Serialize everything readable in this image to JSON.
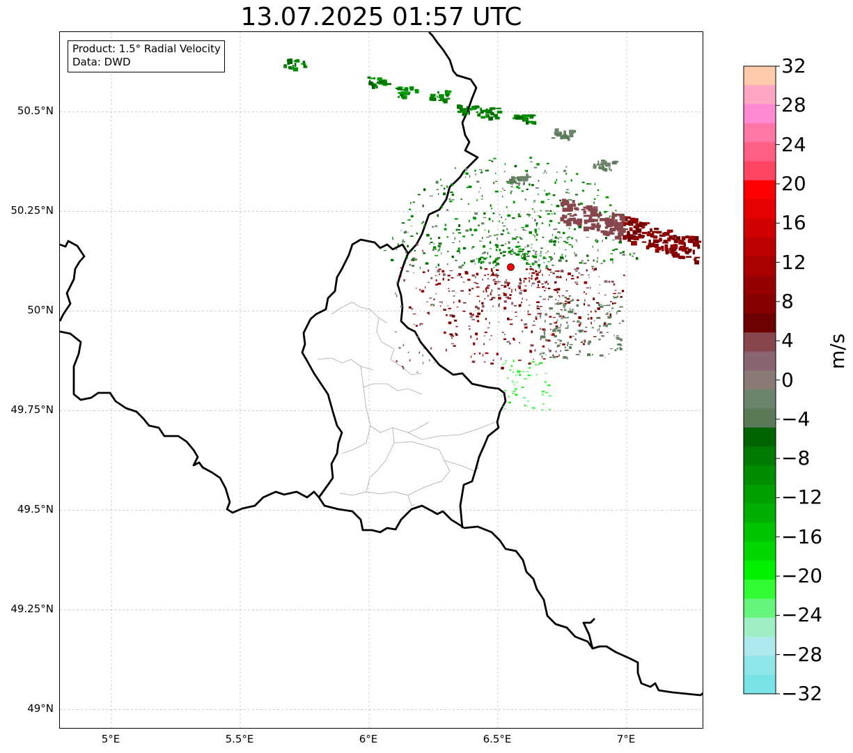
{
  "title": "13.07.2025 01:57 UTC",
  "info_box": {
    "product": "Product: 1.5° Radial Velocity",
    "data": "Data: DWD"
  },
  "axes": {
    "lat_ticks": [
      {
        "label": "50.5°N",
        "value": 50.5
      },
      {
        "label": "50.25°N",
        "value": 50.25
      },
      {
        "label": "50°N",
        "value": 50.0
      },
      {
        "label": "49.75°N",
        "value": 49.75
      },
      {
        "label": "49.5°N",
        "value": 49.5
      },
      {
        "label": "49.25°N",
        "value": 49.25
      },
      {
        "label": "49°N",
        "value": 49.0
      }
    ],
    "lon_ticks": [
      {
        "label": "5°E",
        "value": 5.0
      },
      {
        "label": "5.5°E",
        "value": 5.5
      },
      {
        "label": "6°E",
        "value": 6.0
      },
      {
        "label": "6.5°E",
        "value": 6.5
      },
      {
        "label": "7°E",
        "value": 7.0
      }
    ],
    "lon_range": [
      4.8,
      7.3
    ],
    "lat_range": [
      48.95,
      50.7
    ],
    "gridlines": true
  },
  "radar_site": {
    "lon": 6.55,
    "lat": 50.11,
    "color": "#ff0000"
  },
  "colorbar": {
    "unit": "m/s",
    "min": -32,
    "max": 32,
    "tick_labels": [
      "32",
      "28",
      "24",
      "20",
      "16",
      "12",
      "8",
      "4",
      "0",
      "−4",
      "−8",
      "−12",
      "−16",
      "−20",
      "−24",
      "−28",
      "−32"
    ],
    "colors_top_to_bottom": [
      "#ffcbaa",
      "#ffa6c3",
      "#ff8ad1",
      "#ff77a6",
      "#ff5f82",
      "#ff4562",
      "#ff0000",
      "#e60000",
      "#d20000",
      "#bd0000",
      "#a80000",
      "#960000",
      "#860000",
      "#6e0000",
      "#86464b",
      "#8a6470",
      "#8a7a76",
      "#6b846b",
      "#5b7b58",
      "#006400",
      "#007b00",
      "#008e00",
      "#009f00",
      "#00b000",
      "#00c400",
      "#00d800",
      "#00f000",
      "#33fb33",
      "#66f57b",
      "#9ef0c4",
      "#ade8ec",
      "#8ee6e9",
      "#77e3e7"
    ]
  }
}
